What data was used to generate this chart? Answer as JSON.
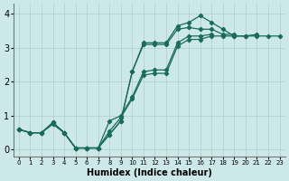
{
  "title": "",
  "xlabel": "Humidex (Indice chaleur)",
  "ylabel": "",
  "bg_color": "#cde8e8",
  "grid_color": "#b8d4d4",
  "line_color": "#1a6b5a",
  "xlim": [
    -0.5,
    23.5
  ],
  "ylim": [
    -0.2,
    4.3
  ],
  "xticks": [
    0,
    1,
    2,
    3,
    4,
    5,
    6,
    7,
    8,
    9,
    10,
    11,
    12,
    13,
    14,
    15,
    16,
    17,
    18,
    19,
    20,
    21,
    22,
    23
  ],
  "yticks": [
    0,
    1,
    2,
    3,
    4
  ],
  "series": [
    [
      0.6,
      0.5,
      0.5,
      0.75,
      0.5,
      0.05,
      0.05,
      0.05,
      0.45,
      0.85,
      2.3,
      3.15,
      3.15,
      3.15,
      3.65,
      3.75,
      3.95,
      3.75,
      3.55,
      3.35,
      3.35,
      3.4
    ],
    [
      0.6,
      0.5,
      0.5,
      0.78,
      0.5,
      0.05,
      0.05,
      0.05,
      0.45,
      0.85,
      2.3,
      3.1,
      3.1,
      3.1,
      3.55,
      3.6,
      3.55,
      3.55,
      3.4,
      3.4
    ],
    [
      0.6,
      0.5,
      0.5,
      0.8,
      0.5,
      0.05,
      0.05,
      0.05,
      0.85,
      1.0,
      1.55,
      2.3,
      2.35,
      2.35,
      3.15,
      3.35,
      3.35,
      3.4
    ],
    [
      0.6,
      0.5,
      0.5,
      0.8,
      0.5,
      0.05,
      0.05,
      0.05,
      0.55,
      0.95,
      1.5,
      2.2,
      2.25,
      2.25,
      3.05,
      3.25,
      3.25,
      3.35,
      3.35,
      3.35,
      3.35,
      3.35,
      3.35,
      3.35
    ]
  ],
  "series_x": [
    [
      0,
      1,
      2,
      3,
      4,
      5,
      6,
      7,
      8,
      9,
      10,
      11,
      12,
      13,
      14,
      15,
      16,
      17,
      18,
      19,
      20,
      21
    ],
    [
      0,
      1,
      2,
      3,
      4,
      5,
      6,
      7,
      8,
      9,
      10,
      11,
      12,
      13,
      14,
      15,
      16,
      17,
      18,
      19
    ],
    [
      0,
      1,
      2,
      3,
      4,
      5,
      6,
      7,
      8,
      9,
      10,
      11,
      12,
      13,
      14,
      15,
      16,
      17
    ],
    [
      0,
      1,
      2,
      3,
      4,
      5,
      6,
      7,
      8,
      9,
      10,
      11,
      12,
      13,
      14,
      15,
      16,
      17,
      18,
      19,
      20,
      21,
      22,
      23
    ]
  ],
  "figwidth": 3.2,
  "figheight": 2.0,
  "dpi": 100
}
